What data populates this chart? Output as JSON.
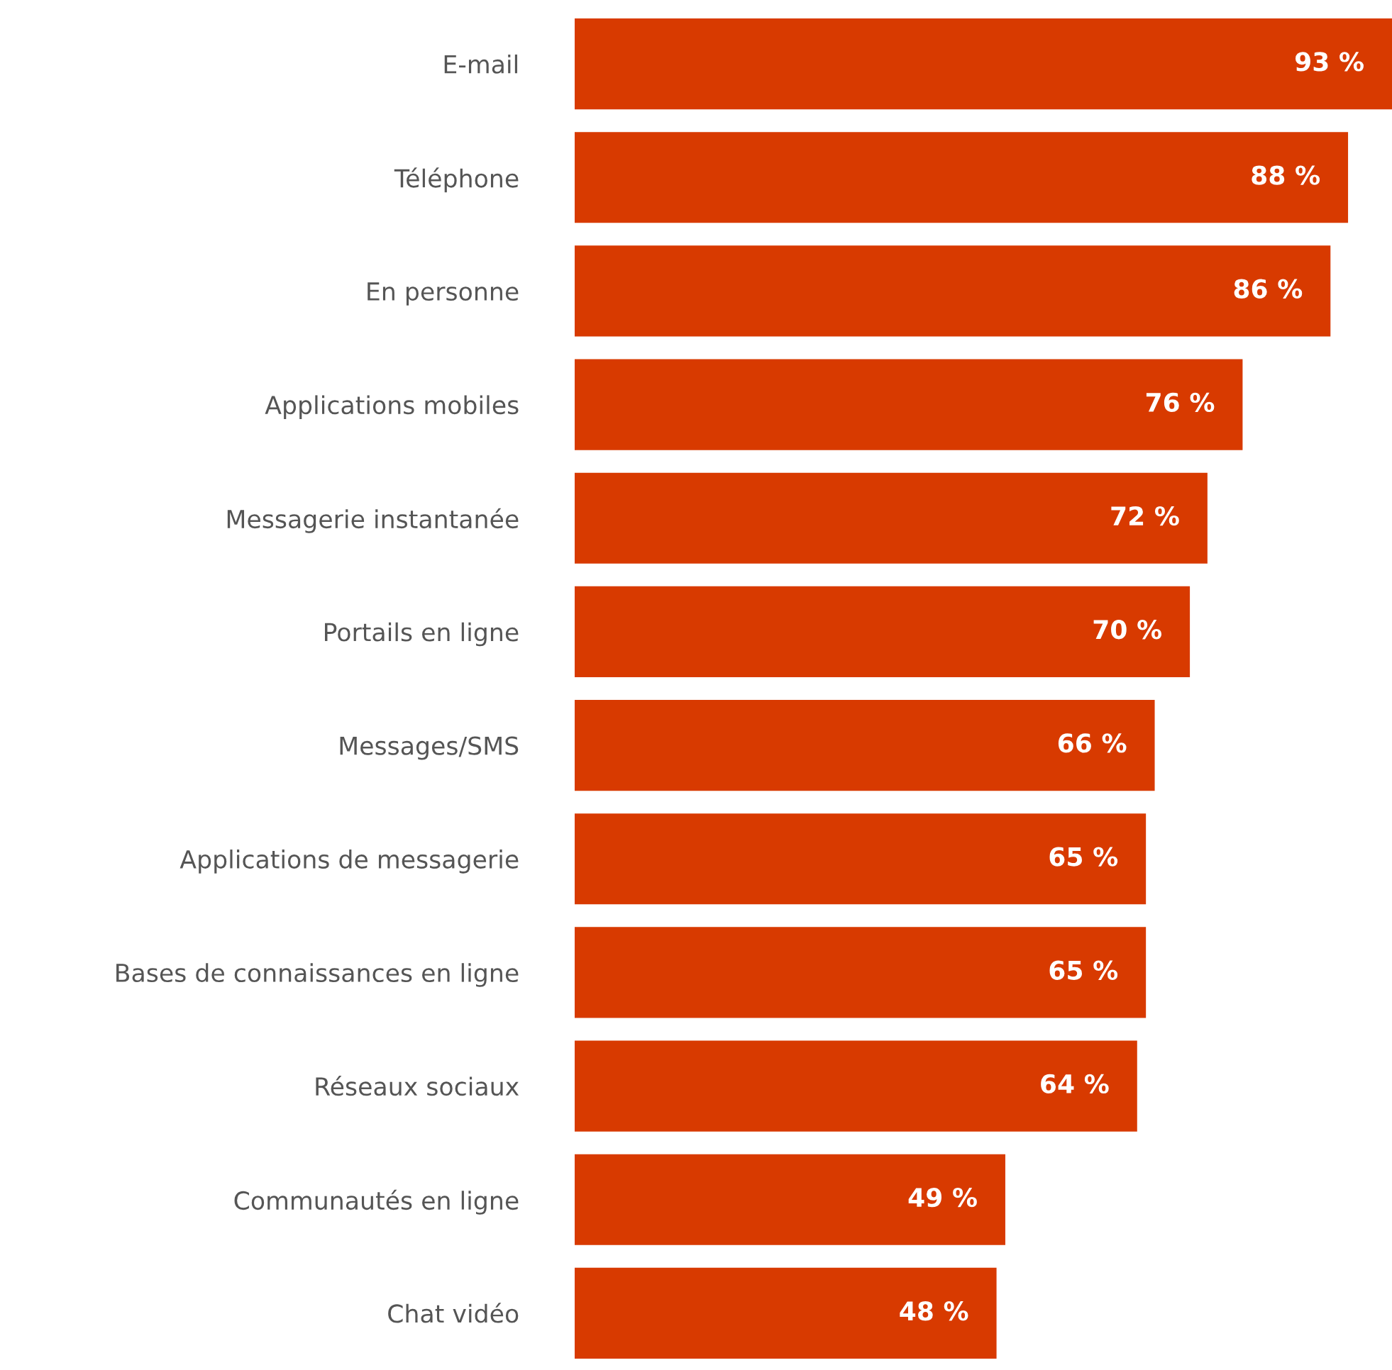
{
  "chart_data": {
    "type": "bar",
    "orientation": "horizontal",
    "categories": [
      "E-mail",
      "Téléphone",
      "En personne",
      "Applications mobiles",
      "Messagerie instantanée",
      "Portails en ligne",
      "Messages/SMS",
      "Applications de messagerie",
      "Bases de connaissances en ligne",
      "Réseaux sociaux",
      "Communautés en ligne",
      "Chat vidéo"
    ],
    "values": [
      93,
      88,
      86,
      76,
      72,
      70,
      66,
      65,
      65,
      64,
      49,
      48
    ],
    "value_labels": [
      "93 %",
      "88 %",
      "86 %",
      "76 %",
      "72 %",
      "70 %",
      "66 %",
      "65 %",
      "65 %",
      "64 %",
      "49 %",
      "48 %"
    ],
    "color": "#d83a00"
  }
}
